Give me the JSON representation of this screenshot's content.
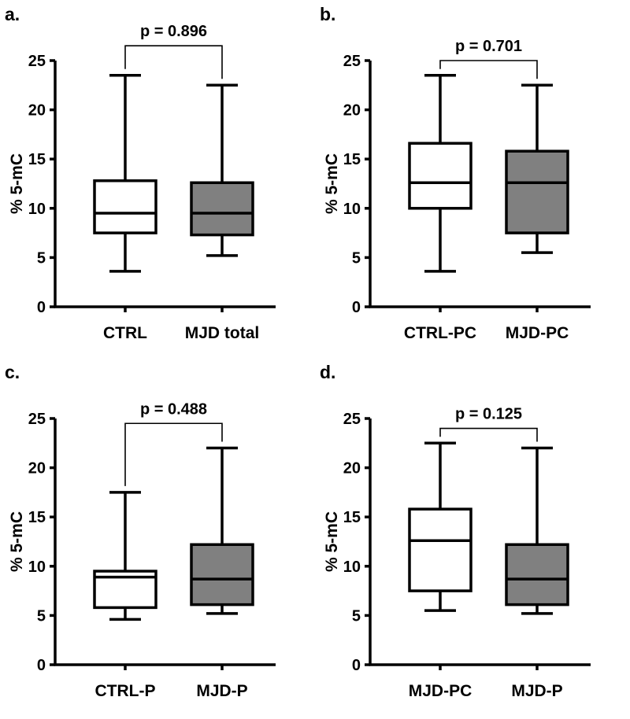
{
  "colors": {
    "ctrl_fill": "#ffffff",
    "mjd_fill": "#808080",
    "stroke": "#000000"
  },
  "chart_data": [
    {
      "type": "box",
      "panel_label": "a.",
      "ylabel": "% 5-mC",
      "ylim": [
        0,
        25
      ],
      "yticks": [
        0,
        5,
        10,
        15,
        20,
        25
      ],
      "categories": [
        "CTRL",
        "MJD total"
      ],
      "boxes": [
        {
          "name": "CTRL",
          "min": 3.6,
          "q1": 7.5,
          "median": 9.5,
          "q3": 12.8,
          "max": 23.5,
          "fill": "#ffffff"
        },
        {
          "name": "MJD total",
          "min": 5.2,
          "q1": 7.3,
          "median": 9.5,
          "q3": 12.6,
          "max": 22.5,
          "fill": "#808080"
        }
      ],
      "pvalue": "p = 0.896",
      "bracket_level": 26.5
    },
    {
      "type": "box",
      "panel_label": "b.",
      "ylabel": "% 5-mC",
      "ylim": [
        0,
        25
      ],
      "yticks": [
        0,
        5,
        10,
        15,
        20,
        25
      ],
      "categories": [
        "CTRL-PC",
        "MJD-PC"
      ],
      "boxes": [
        {
          "name": "CTRL-PC",
          "min": 3.6,
          "q1": 10.0,
          "median": 12.6,
          "q3": 16.6,
          "max": 23.5,
          "fill": "#ffffff"
        },
        {
          "name": "MJD-PC",
          "min": 5.5,
          "q1": 7.5,
          "median": 12.6,
          "q3": 15.8,
          "max": 22.5,
          "fill": "#808080"
        }
      ],
      "pvalue": "p = 0.701",
      "bracket_level": 25.0
    },
    {
      "type": "box",
      "panel_label": "c.",
      "ylabel": "% 5-mC",
      "ylim": [
        0,
        25
      ],
      "yticks": [
        0,
        5,
        10,
        15,
        20,
        25
      ],
      "categories": [
        "CTRL-P",
        "MJD-P"
      ],
      "boxes": [
        {
          "name": "CTRL-P",
          "min": 4.6,
          "q1": 5.8,
          "median": 8.9,
          "q3": 9.5,
          "max": 17.5,
          "fill": "#ffffff"
        },
        {
          "name": "MJD-P",
          "min": 5.2,
          "q1": 6.1,
          "median": 8.7,
          "q3": 12.2,
          "max": 22.0,
          "fill": "#808080"
        }
      ],
      "pvalue": "p = 0.488",
      "bracket_level": 24.5
    },
    {
      "type": "box",
      "panel_label": "d.",
      "ylabel": "% 5-mC",
      "ylim": [
        0,
        25
      ],
      "yticks": [
        0,
        5,
        10,
        15,
        20,
        25
      ],
      "categories": [
        "MJD-PC",
        "MJD-P"
      ],
      "boxes": [
        {
          "name": "MJD-PC",
          "min": 5.5,
          "q1": 7.5,
          "median": 12.6,
          "q3": 15.8,
          "max": 22.5,
          "fill": "#ffffff"
        },
        {
          "name": "MJD-P",
          "min": 5.2,
          "q1": 6.1,
          "median": 8.7,
          "q3": 12.2,
          "max": 22.0,
          "fill": "#808080"
        }
      ],
      "pvalue": "p = 0.125",
      "bracket_level": 24.0
    }
  ]
}
